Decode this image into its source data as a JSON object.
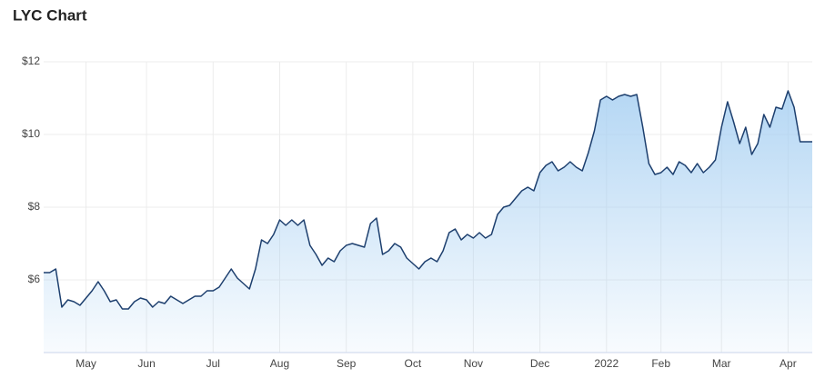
{
  "chart_data": {
    "type": "area",
    "title": "LYC Chart",
    "categories": [
      null,
      null,
      null,
      null,
      null,
      null,
      null,
      "May",
      null,
      null,
      null,
      null,
      null,
      null,
      null,
      null,
      null,
      "Jun",
      null,
      null,
      null,
      null,
      null,
      null,
      null,
      null,
      null,
      null,
      "Jul",
      null,
      null,
      null,
      null,
      null,
      null,
      null,
      null,
      null,
      null,
      "Aug",
      null,
      null,
      null,
      null,
      null,
      null,
      null,
      null,
      null,
      null,
      "Sep",
      null,
      null,
      null,
      null,
      null,
      null,
      null,
      null,
      null,
      null,
      "Oct",
      null,
      null,
      null,
      null,
      null,
      null,
      null,
      null,
      null,
      "Nov",
      null,
      null,
      null,
      null,
      null,
      null,
      null,
      null,
      null,
      null,
      "Dec",
      null,
      null,
      null,
      null,
      null,
      null,
      null,
      null,
      null,
      null,
      "2022",
      null,
      null,
      null,
      null,
      null,
      null,
      null,
      null,
      "Feb",
      null,
      null,
      null,
      null,
      null,
      null,
      null,
      null,
      null,
      "Mar",
      null,
      null,
      null,
      null,
      null,
      null,
      null,
      null,
      null,
      null,
      "Apr",
      null,
      null,
      null,
      null
    ],
    "values": [
      6.2,
      6.2,
      6.3,
      5.25,
      5.45,
      5.4,
      5.3,
      5.5,
      5.7,
      5.95,
      5.7,
      5.4,
      5.45,
      5.2,
      5.2,
      5.4,
      5.5,
      5.45,
      5.25,
      5.4,
      5.35,
      5.55,
      5.45,
      5.35,
      5.45,
      5.55,
      5.55,
      5.7,
      5.7,
      5.8,
      6.05,
      6.3,
      6.05,
      5.9,
      5.75,
      6.3,
      7.1,
      7.0,
      7.25,
      7.65,
      7.5,
      7.65,
      7.5,
      7.65,
      6.95,
      6.7,
      6.4,
      6.6,
      6.5,
      6.8,
      6.95,
      7.0,
      6.95,
      6.9,
      7.55,
      7.7,
      6.7,
      6.8,
      7.0,
      6.9,
      6.6,
      6.45,
      6.3,
      6.5,
      6.6,
      6.5,
      6.8,
      7.3,
      7.4,
      7.1,
      7.25,
      7.15,
      7.3,
      7.15,
      7.25,
      7.8,
      8.0,
      8.05,
      8.25,
      8.45,
      8.55,
      8.45,
      8.95,
      9.15,
      9.25,
      9.0,
      9.1,
      9.25,
      9.1,
      9.0,
      9.5,
      10.1,
      10.95,
      11.05,
      10.95,
      11.05,
      11.1,
      11.05,
      11.1,
      10.2,
      9.2,
      8.9,
      8.95,
      9.1,
      8.9,
      9.25,
      9.15,
      8.95,
      9.2,
      8.95,
      9.1,
      9.3,
      10.2,
      10.9,
      10.35,
      9.75,
      10.2,
      9.45,
      9.75,
      10.55,
      10.2,
      10.75,
      10.7,
      11.2,
      10.75,
      9.8,
      9.8,
      9.8
    ],
    "color": "#1d3f6e",
    "fill_color": "#a8d0f2",
    "ylim": [
      4,
      12
    ],
    "yticks": [
      {
        "value": 6,
        "label": "$6"
      },
      {
        "value": 8,
        "label": "$8"
      },
      {
        "value": 10,
        "label": "$10"
      },
      {
        "value": 12,
        "label": "$12"
      }
    ],
    "grid": true
  }
}
